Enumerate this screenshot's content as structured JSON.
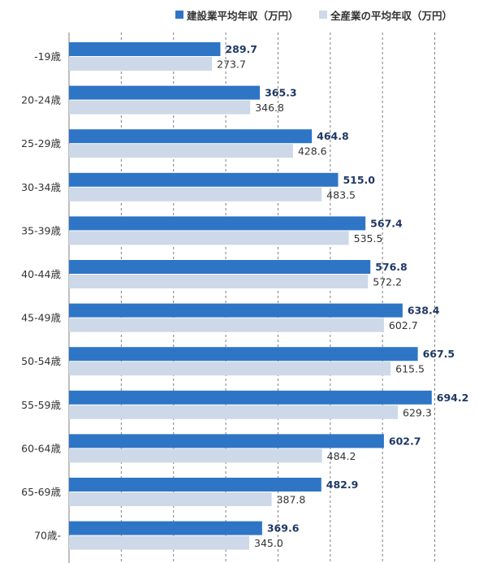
{
  "chart_data": {
    "type": "bar",
    "orientation": "horizontal",
    "categories": [
      "-19歳",
      "20-24歳",
      "25-29歳",
      "30-34歳",
      "35-39歳",
      "40-44歳",
      "45-49歳",
      "50-54歳",
      "55-59歳",
      "60-64歳",
      "65-69歳",
      "70歳-"
    ],
    "series": [
      {
        "name": "建設業平均年収（万円）",
        "color": "#2e75c6",
        "values": [
          289.7,
          365.3,
          464.8,
          515.0,
          567.4,
          576.8,
          638.4,
          667.5,
          694.2,
          602.7,
          482.9,
          369.6
        ]
      },
      {
        "name": "全産業の平均年収（万円）",
        "color": "#cdd9e8",
        "values": [
          273.7,
          346.8,
          428.6,
          483.5,
          535.5,
          572.2,
          602.7,
          615.5,
          629.3,
          484.2,
          387.8,
          345.0
        ]
      }
    ],
    "xlim": [
      0,
      800
    ],
    "grid": "vertical dashed",
    "legend": "top-right",
    "data_labels": true
  }
}
